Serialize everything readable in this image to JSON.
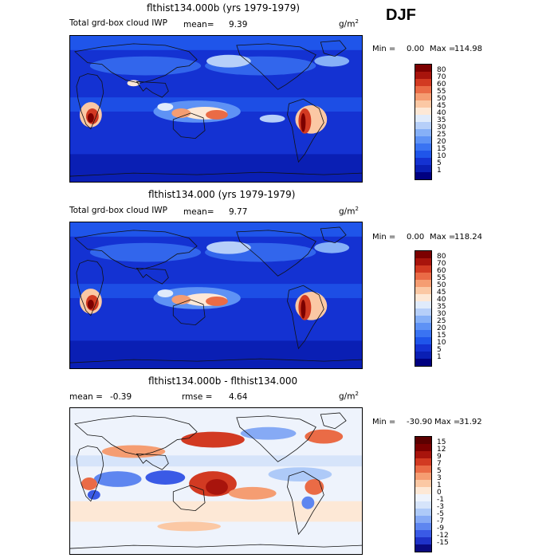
{
  "season": "DJF",
  "panels": [
    {
      "title": "flthist134.000b (yrs 1979-1979)",
      "left_label": "Total grd-box cloud IWP",
      "stat_label": "mean=",
      "stat_value": "9.39",
      "units": "g/m",
      "units_sup": "2",
      "min_label": "Min =",
      "min_value": "0.00",
      "max_label": "Max =",
      "max_value": "114.98",
      "colorbar": [
        "80",
        "70",
        "60",
        "55",
        "50",
        "45",
        "40",
        "35",
        "30",
        "25",
        "20",
        "15",
        "10",
        "5",
        "1"
      ]
    },
    {
      "title": "flthist134.000 (yrs 1979-1979)",
      "left_label": "Total grd-box cloud IWP",
      "stat_label": "mean=",
      "stat_value": "9.77",
      "units": "g/m",
      "units_sup": "2",
      "min_label": "Min =",
      "min_value": "0.00",
      "max_label": "Max =",
      "max_value": "118.24",
      "colorbar": [
        "80",
        "70",
        "60",
        "55",
        "50",
        "45",
        "40",
        "35",
        "30",
        "25",
        "20",
        "15",
        "10",
        "5",
        "1"
      ]
    },
    {
      "title": "flthist134.000b - flthist134.000",
      "left_label": "mean =",
      "left_value": "-0.39",
      "stat_label": "rmse =",
      "stat_value": "4.64",
      "units": "g/m",
      "units_sup": "2",
      "min_label": "Min =",
      "min_value": "-30.90",
      "max_label": "Max =",
      "max_value": "31.92",
      "colorbar": [
        "15",
        "12",
        "9",
        "7",
        "5",
        "3",
        "1",
        "0",
        "-1",
        "-3",
        "-5",
        "-7",
        "-9",
        "-12",
        "-15"
      ]
    }
  ],
  "colors": {
    "seq": [
      "#000080",
      "#0a1fb4",
      "#1432d2",
      "#1f55ea",
      "#3a73f2",
      "#5e92f5",
      "#86b0f7",
      "#b6cff9",
      "#e0ebfb",
      "#fde8d6",
      "#fbc8a4",
      "#f59d72",
      "#ea6b46",
      "#d23a22",
      "#a8140c",
      "#7c0000"
    ],
    "div": [
      "#0a0a80",
      "#1f32c8",
      "#3a5ae6",
      "#5e86f0",
      "#86aaf5",
      "#aecaf8",
      "#d6e4fa",
      "#eef3fc",
      "#fde8d6",
      "#fbc8a4",
      "#f59d72",
      "#ea6b46",
      "#d23a22",
      "#a8140c",
      "#7c0000",
      "#5c0000"
    ]
  },
  "chart_data": [
    {
      "type": "heatmap",
      "title": "flthist134.000b (yrs 1979-1979)",
      "variable": "Total grd-box cloud IWP",
      "units": "g/m2",
      "mean": 9.39,
      "min": 0.0,
      "max": 114.98,
      "levels": [
        1,
        5,
        10,
        15,
        20,
        25,
        30,
        35,
        40,
        45,
        50,
        55,
        60,
        70,
        80
      ]
    },
    {
      "type": "heatmap",
      "title": "flthist134.000 (yrs 1979-1979)",
      "variable": "Total grd-box cloud IWP",
      "units": "g/m2",
      "mean": 9.77,
      "min": 0.0,
      "max": 118.24,
      "levels": [
        1,
        5,
        10,
        15,
        20,
        25,
        30,
        35,
        40,
        45,
        50,
        55,
        60,
        70,
        80
      ]
    },
    {
      "type": "heatmap",
      "title": "flthist134.000b - flthist134.000",
      "units": "g/m2",
      "mean": -0.39,
      "rmse": 4.64,
      "min": -30.9,
      "max": 31.92,
      "levels": [
        -15,
        -12,
        -9,
        -7,
        -5,
        -3,
        -1,
        0,
        1,
        3,
        5,
        7,
        9,
        12,
        15
      ]
    }
  ]
}
